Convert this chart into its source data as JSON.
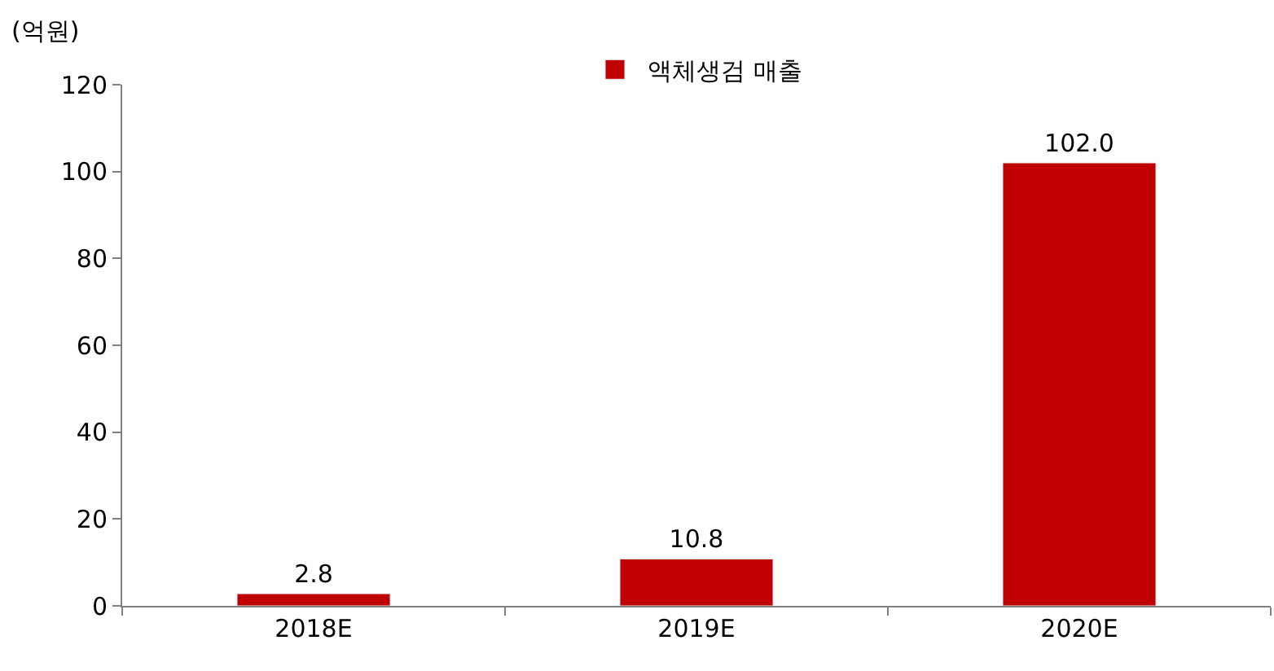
{
  "chart_data": {
    "type": "bar",
    "ylabel": "(억원)",
    "categories": [
      "2018E",
      "2019E",
      "2020E"
    ],
    "series": [
      {
        "name": "액체생검 매출",
        "color": "#c00000",
        "values": [
          2.8,
          10.8,
          102.0
        ],
        "value_labels": [
          "2.8",
          "10.8",
          "102.0"
        ]
      }
    ],
    "ylim": [
      0,
      120
    ],
    "yticks": [
      0,
      20,
      40,
      60,
      80,
      100,
      120
    ],
    "legend": "top"
  }
}
